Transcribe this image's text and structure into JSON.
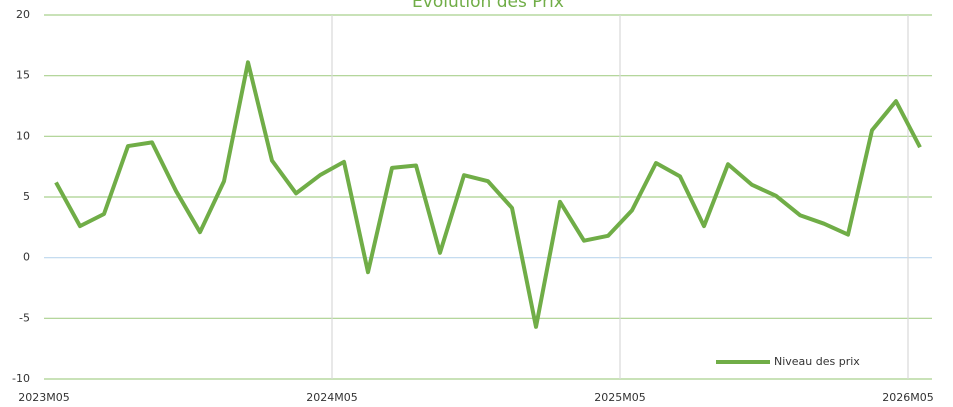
{
  "chart_data": {
    "type": "line",
    "title": "Evolution des Prix",
    "categories": [
      "2023M05",
      null,
      null,
      null,
      null,
      null,
      null,
      null,
      null,
      null,
      null,
      null,
      "2024M05",
      null,
      null,
      null,
      null,
      null,
      null,
      null,
      null,
      null,
      null,
      null,
      "2025M05",
      null,
      null,
      null,
      null,
      null,
      null,
      null,
      null,
      null,
      null,
      null,
      "2026M05"
    ],
    "series": [
      {
        "name": "Niveau des prix",
        "color": "#70ad47",
        "values": [
          6.2,
          2.6,
          3.6,
          9.2,
          9.5,
          5.5,
          2.1,
          6.3,
          16.1,
          8.0,
          5.3,
          6.8,
          7.9,
          -1.2,
          7.4,
          7.6,
          0.4,
          6.8,
          6.3,
          4.1,
          -5.7,
          4.6,
          1.4,
          1.8,
          3.9,
          7.8,
          6.7,
          2.6,
          7.7,
          6.0,
          5.1,
          3.5,
          2.8,
          1.9,
          10.5,
          12.9,
          9.1
        ]
      }
    ],
    "ylim": [
      -10,
      20
    ],
    "yticks": [
      -10,
      -5,
      0,
      5,
      10,
      15,
      20
    ],
    "grid": true,
    "legend": "lower right"
  }
}
